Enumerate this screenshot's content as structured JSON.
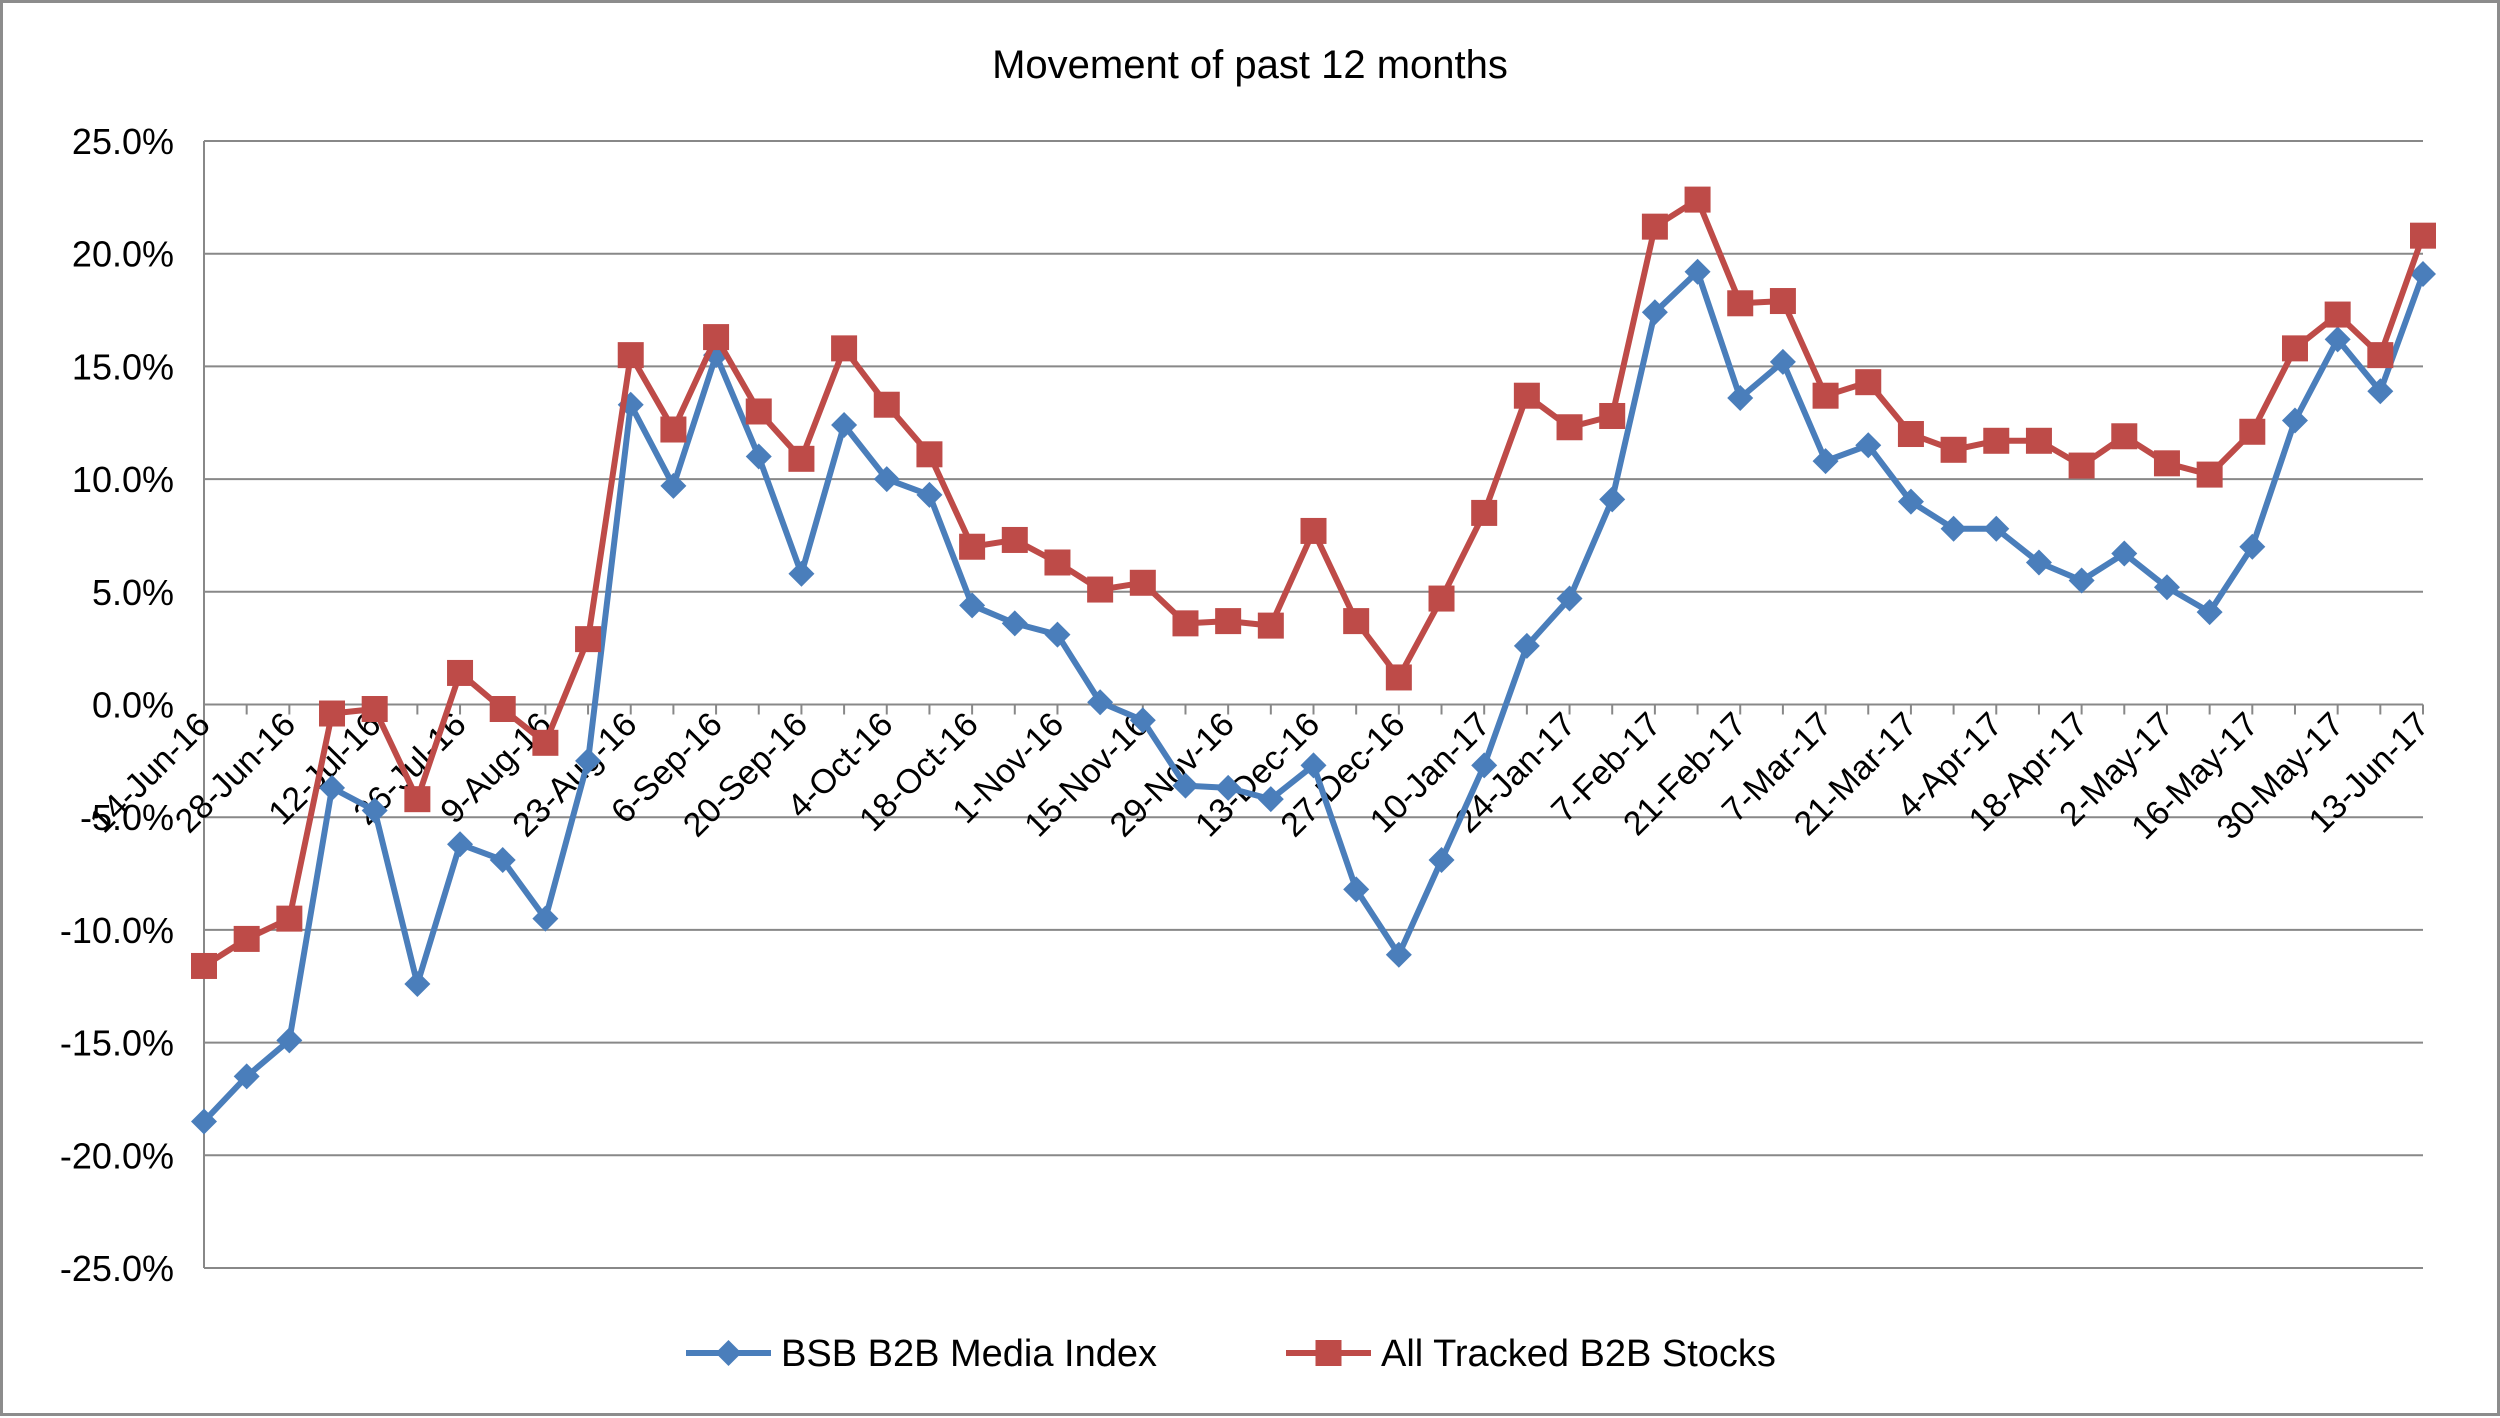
{
  "chart_data": {
    "type": "line",
    "title": "Movement of past 12 months",
    "xlabel": "",
    "ylabel": "",
    "ylim": [
      -0.25,
      0.25
    ],
    "y_ticks": [
      "25.0%",
      "20.0%",
      "15.0%",
      "10.0%",
      "5.0%",
      "0.0%",
      "-5.0%",
      "-10.0%",
      "-15.0%",
      "-20.0%",
      "-25.0%"
    ],
    "grid": "horizontal",
    "legend_position": "bottom",
    "x_tick_labels": [
      "14-Jun-16",
      "28-Jun-16",
      "12-Jul-16",
      "26-Jul-16",
      "9-Aug-16",
      "23-Aug-16",
      "6-Sep-16",
      "20-Sep-16",
      "4-Oct-16",
      "18-Oct-16",
      "1-Nov-16",
      "15-Nov-16",
      "29-Nov-16",
      "13-Dec-16",
      "27-Dec-16",
      "10-Jan-17",
      "24-Jan-17",
      "7-Feb-17",
      "21-Feb-17",
      "7-Mar-17",
      "21-Mar-17",
      "4-Apr-17",
      "18-Apr-17",
      "2-May-17",
      "16-May-17",
      "30-May-17",
      "13-Jun-17"
    ],
    "x": [
      "14-Jun-16",
      "21-Jun-16",
      "28-Jun-16",
      "5-Jul-16",
      "12-Jul-16",
      "19-Jul-16",
      "26-Jul-16",
      "2-Aug-16",
      "9-Aug-16",
      "16-Aug-16",
      "23-Aug-16",
      "30-Aug-16",
      "6-Sep-16",
      "13-Sep-16",
      "20-Sep-16",
      "27-Sep-16",
      "4-Oct-16",
      "11-Oct-16",
      "18-Oct-16",
      "25-Oct-16",
      "1-Nov-16",
      "8-Nov-16",
      "15-Nov-16",
      "22-Nov-16",
      "29-Nov-16",
      "6-Dec-16",
      "13-Dec-16",
      "20-Dec-16",
      "27-Dec-16",
      "3-Jan-17",
      "10-Jan-17",
      "17-Jan-17",
      "24-Jan-17",
      "31-Jan-17",
      "7-Feb-17",
      "14-Feb-17",
      "21-Feb-17",
      "28-Feb-17",
      "7-Mar-17",
      "14-Mar-17",
      "21-Mar-17",
      "28-Mar-17",
      "4-Apr-17",
      "11-Apr-17",
      "18-Apr-17",
      "25-Apr-17",
      "2-May-17",
      "9-May-17",
      "16-May-17",
      "23-May-17",
      "30-May-17",
      "6-Jun-17",
      "13-Jun-17"
    ],
    "series": [
      {
        "name": "BSB B2B Media Index",
        "color": "#4a7ebb",
        "marker": "diamond",
        "values": [
          -0.185,
          -0.165,
          -0.149,
          -0.037,
          -0.047,
          -0.124,
          -0.062,
          -0.069,
          -0.095,
          -0.025,
          0.133,
          0.097,
          0.155,
          0.11,
          0.058,
          0.124,
          0.1,
          0.093,
          0.044,
          0.036,
          0.031,
          0.001,
          -0.007,
          -0.036,
          -0.037,
          -0.042,
          -0.027,
          -0.082,
          -0.111,
          -0.069,
          -0.027,
          0.026,
          0.047,
          0.091,
          0.174,
          0.192,
          0.136,
          0.152,
          0.108,
          0.115,
          0.09,
          0.078,
          0.078,
          0.063,
          0.055,
          0.067,
          0.052,
          0.041,
          0.07,
          0.126,
          0.162,
          0.139,
          0.191
        ]
      },
      {
        "name": "All Tracked B2B Stocks",
        "color": "#be4b48",
        "marker": "square",
        "values": [
          -0.116,
          -0.104,
          -0.095,
          -0.004,
          -0.002,
          -0.042,
          0.014,
          -0.002,
          -0.017,
          0.029,
          0.155,
          0.122,
          0.163,
          0.13,
          0.109,
          0.158,
          0.133,
          0.111,
          0.07,
          0.073,
          0.063,
          0.051,
          0.054,
          0.036,
          0.037,
          0.035,
          0.077,
          0.037,
          0.012,
          0.047,
          0.085,
          0.137,
          0.123,
          0.128,
          0.212,
          0.224,
          0.178,
          0.179,
          0.137,
          0.143,
          0.12,
          0.113,
          0.117,
          0.117,
          0.106,
          0.119,
          0.107,
          0.102,
          0.121,
          0.158,
          0.173,
          0.155,
          0.208
        ]
      }
    ]
  }
}
